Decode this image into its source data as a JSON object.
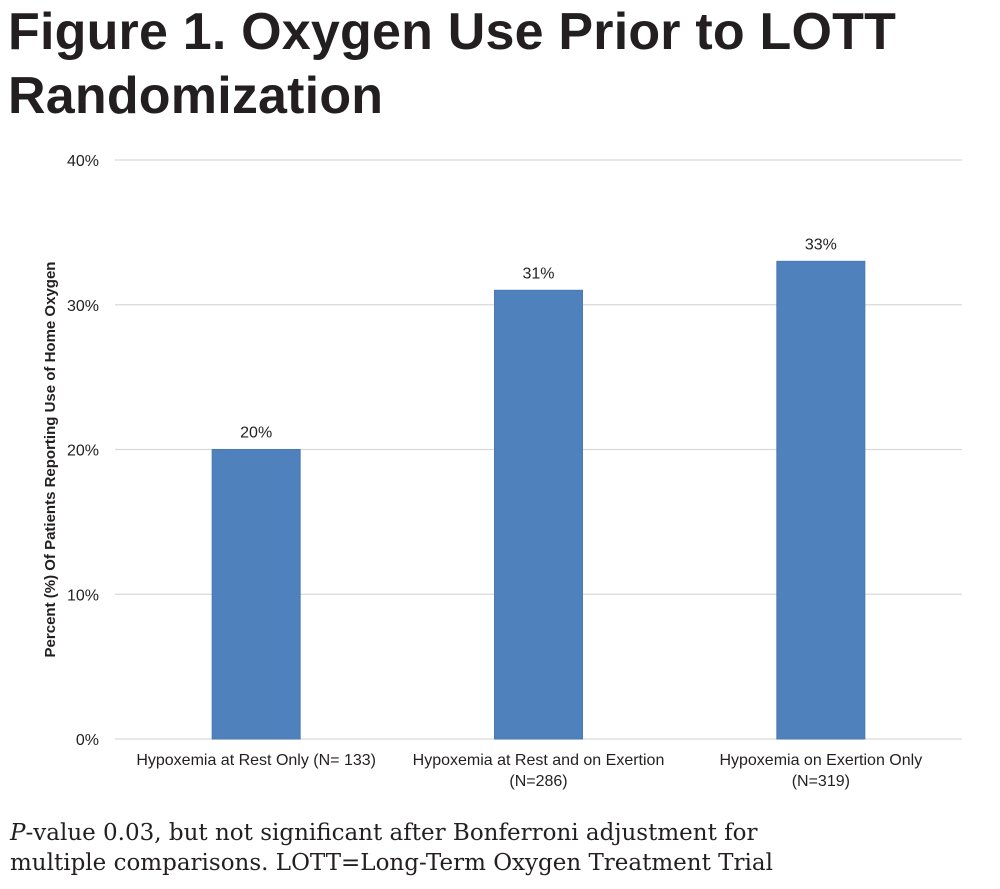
{
  "figure": {
    "title": "Figure 1. Oxygen Use Prior to LOTT Randomization"
  },
  "footnote": {
    "p_symbol": "P",
    "text_line1": "-value 0.03, but not significant after Bonferroni adjustment for",
    "text_line2": "multiple comparisons. LOTT=Long-Term Oxygen Treatment Trial"
  },
  "chart_data": {
    "type": "bar",
    "title": "",
    "xlabel": "",
    "ylabel": "Percent (%) Of Patients Reporting Use of Home Oxygen",
    "categories": [
      [
        "Hypoxemia at Rest Only (N= 133)"
      ],
      [
        "Hypoxemia at Rest and on Exertion",
        "(N=286)"
      ],
      [
        "Hypoxemia on Exertion Only",
        "(N=319)"
      ]
    ],
    "values": [
      20,
      31,
      33
    ],
    "data_labels": [
      "20%",
      "31%",
      "33%"
    ],
    "ylim": [
      0,
      40
    ],
    "yticks": [
      0,
      10,
      20,
      30,
      40
    ],
    "ytick_labels": [
      "0%",
      "10%",
      "20%",
      "30%",
      "40%"
    ],
    "grid": true,
    "legend": "none",
    "bar_color": "#4f81bd",
    "bar_stroke": "#4a7ab5",
    "grid_color": "#d9d9d9",
    "text_color": "#231f20"
  }
}
